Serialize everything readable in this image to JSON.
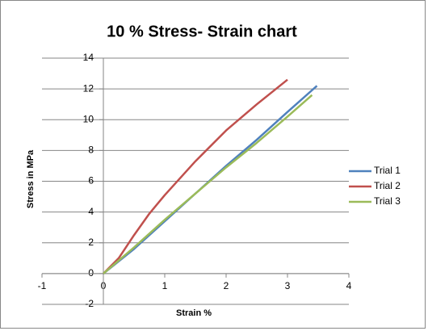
{
  "chart_data": {
    "type": "line",
    "title": "10 % Stress- Strain chart",
    "x_label": "Strain %",
    "y_label": "Stress in MPa",
    "xlim": [
      -1,
      4
    ],
    "xticks": [
      -1,
      0,
      1,
      2,
      3,
      4
    ],
    "ylim": [
      -2,
      14
    ],
    "yticks": [
      -2,
      0,
      2,
      4,
      6,
      8,
      10,
      12,
      14
    ],
    "grid": true,
    "legend": "right",
    "series": [
      {
        "name": "Trial 1",
        "color": "#4f81bd",
        "x": [
          0,
          0.5,
          1,
          1.5,
          2,
          2.5,
          3,
          3.48
        ],
        "values": [
          0,
          1.6,
          3.4,
          5.2,
          7.0,
          8.7,
          10.5,
          12.2
        ]
      },
      {
        "name": "Trial 2",
        "color": "#c0504d",
        "x": [
          0,
          0.25,
          0.5,
          0.75,
          1,
          1.5,
          2,
          2.5,
          3
        ],
        "values": [
          0,
          1.0,
          2.5,
          3.9,
          5.1,
          7.3,
          9.3,
          11.0,
          12.6
        ]
      },
      {
        "name": "Trial 3",
        "color": "#9bbb59",
        "x": [
          0,
          0.5,
          1,
          1.5,
          2,
          2.5,
          3,
          3.4
        ],
        "values": [
          0,
          1.7,
          3.5,
          5.2,
          6.9,
          8.5,
          10.2,
          11.6
        ]
      }
    ]
  }
}
